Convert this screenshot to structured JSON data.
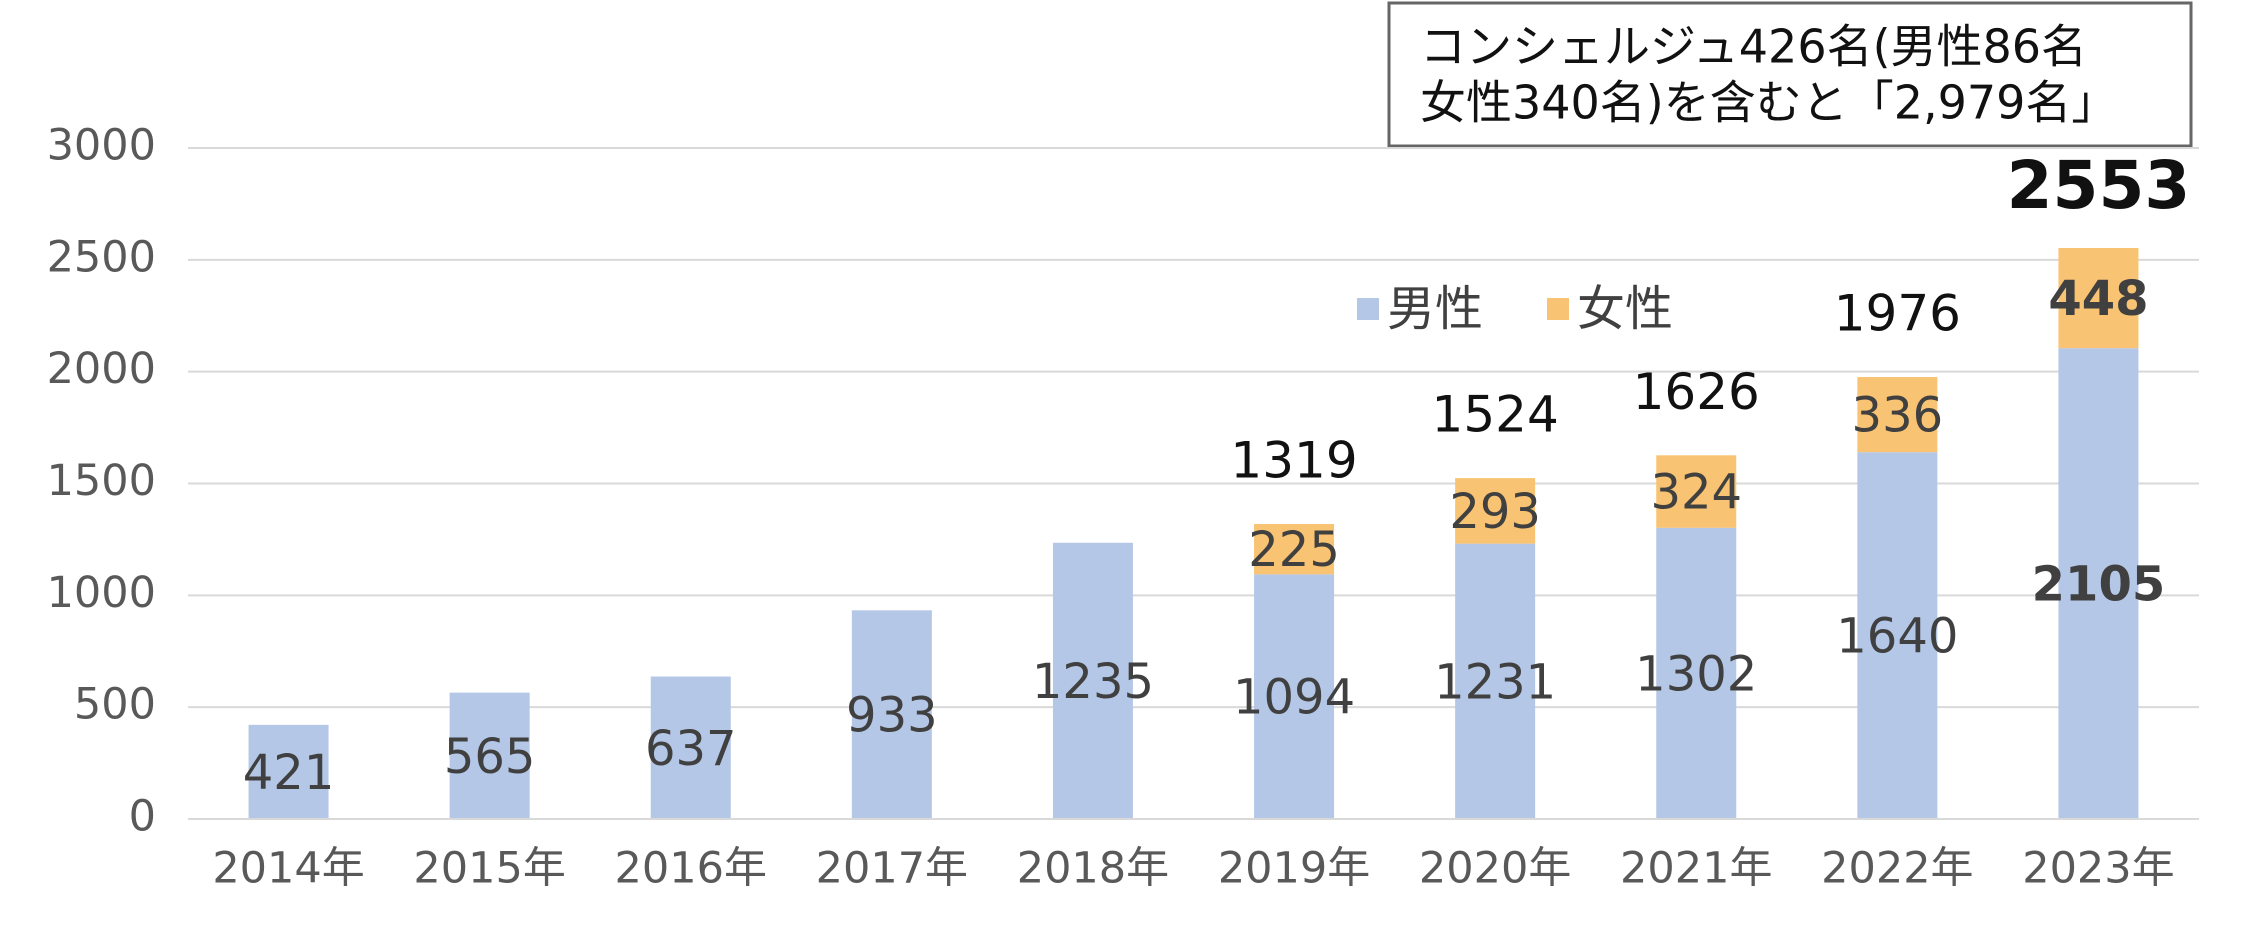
{
  "chart_data": {
    "type": "stacked_bar",
    "categories": [
      "2014年",
      "2015年",
      "2016年",
      "2017年",
      "2018年",
      "2019年",
      "2020年",
      "2021年",
      "2022年",
      "2023年"
    ],
    "series": [
      {
        "name": "男性",
        "color": "#b4c7e7",
        "values": [
          421,
          565,
          637,
          933,
          1235,
          1094,
          1231,
          1302,
          1640,
          2105
        ]
      },
      {
        "name": "女性",
        "color": "#f8c372",
        "values": [
          null,
          null,
          null,
          null,
          null,
          225,
          293,
          324,
          336,
          448
        ]
      }
    ],
    "totals": [
      null,
      null,
      null,
      null,
      null,
      1319,
      1524,
      1626,
      1976,
      2553
    ],
    "ylim": [
      0,
      3000
    ],
    "yticks": [
      0,
      500,
      1000,
      1500,
      2000,
      2500,
      3000
    ],
    "grid": true,
    "annotation": [
      "コンシェルジュ426名(男性86名",
      "女性340名)を含むと「2,979名」"
    ]
  }
}
